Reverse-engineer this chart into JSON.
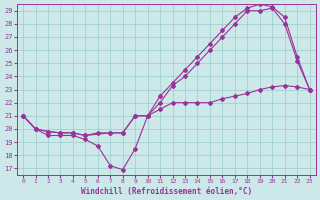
{
  "bg_color": "#cce8e8",
  "line_color": "#993399",
  "grid_color": "#99cccc",
  "xlabel": "Windchill (Refroidissement éolien,°C)",
  "xlim": [
    -0.5,
    23.5
  ],
  "ylim": [
    16.5,
    29.5
  ],
  "xticks": [
    0,
    1,
    2,
    3,
    4,
    5,
    6,
    7,
    8,
    9,
    10,
    11,
    12,
    13,
    14,
    15,
    16,
    17,
    18,
    19,
    20,
    21,
    22,
    23
  ],
  "yticks": [
    17,
    18,
    19,
    20,
    21,
    22,
    23,
    24,
    25,
    26,
    27,
    28,
    29
  ],
  "lines": [
    {
      "x": [
        0,
        1,
        2,
        3,
        4,
        5,
        6,
        7,
        8,
        9,
        10,
        11,
        12,
        13,
        14,
        15,
        16,
        17,
        18,
        19,
        20,
        21,
        22,
        23
      ],
      "y": [
        21,
        20,
        19.5,
        19.5,
        19.5,
        19.2,
        18.7,
        17.2,
        16.9,
        18.5,
        21.0,
        21.5,
        22.0,
        22.0,
        22.0,
        22.0,
        22.3,
        22.5,
        22.7,
        23.0,
        23.2,
        23.3,
        23.2,
        23.0
      ]
    },
    {
      "x": [
        0,
        1,
        2,
        3,
        4,
        5,
        6,
        7,
        8,
        9,
        10,
        11,
        12,
        13,
        14,
        15,
        16,
        17,
        18,
        19,
        20,
        21,
        22,
        23
      ],
      "y": [
        21,
        20,
        19.8,
        19.7,
        19.7,
        19.5,
        19.7,
        19.7,
        19.7,
        21.0,
        21.0,
        22.0,
        23.3,
        24.0,
        25.0,
        26.0,
        27.0,
        28.0,
        29.0,
        29.0,
        29.2,
        28.0,
        25.2,
        23.0
      ]
    },
    {
      "x": [
        0,
        1,
        2,
        3,
        4,
        5,
        7,
        8,
        9,
        10,
        11,
        12,
        13,
        14,
        15,
        16,
        17,
        18,
        19,
        20,
        21,
        22,
        23
      ],
      "y": [
        21,
        20,
        19.8,
        19.7,
        19.7,
        19.5,
        19.7,
        19.7,
        21.0,
        21.0,
        22.5,
        23.5,
        24.5,
        25.5,
        26.5,
        27.5,
        28.5,
        29.2,
        29.5,
        29.3,
        28.5,
        25.5,
        23.0
      ]
    }
  ]
}
